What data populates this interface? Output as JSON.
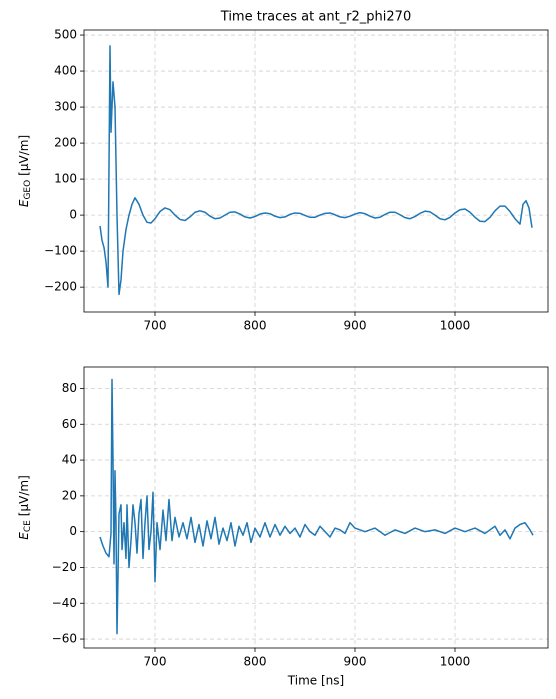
{
  "chart_data": [
    {
      "type": "line",
      "title": "Time traces at ant_r2_phi270",
      "ylabel": {
        "symbol": "E",
        "subscript": "GEO",
        "unit": "[μV/m]"
      },
      "xlim": [
        629,
        1093
      ],
      "ylim": [
        -269,
        514
      ],
      "xticks": [
        700,
        800,
        900,
        1000
      ],
      "yticks": [
        {
          "value": -200,
          "label": "−200"
        },
        {
          "value": -100,
          "label": "−100"
        },
        0,
        100,
        200,
        300,
        400,
        500
      ],
      "grid": true,
      "series": [
        {
          "name": "E_GEO",
          "color": "#1f77b4",
          "x": [
            645,
            647,
            649,
            651,
            653,
            655,
            656,
            658,
            660,
            662,
            664,
            666,
            668,
            671,
            674,
            677,
            680,
            684,
            688,
            692,
            696,
            700,
            705,
            710,
            715,
            720,
            725,
            730,
            735,
            740,
            745,
            750,
            755,
            760,
            765,
            770,
            775,
            780,
            785,
            790,
            795,
            800,
            805,
            810,
            815,
            820,
            825,
            830,
            835,
            840,
            845,
            850,
            855,
            860,
            865,
            870,
            875,
            880,
            885,
            890,
            895,
            900,
            905,
            910,
            915,
            920,
            925,
            930,
            935,
            940,
            945,
            950,
            955,
            960,
            965,
            970,
            975,
            980,
            985,
            990,
            995,
            1000,
            1005,
            1010,
            1015,
            1020,
            1025,
            1030,
            1035,
            1040,
            1045,
            1050,
            1055,
            1060,
            1065,
            1068,
            1071,
            1074,
            1077
          ],
          "values": [
            -30,
            -70,
            -90,
            -130,
            -200,
            470,
            230,
            370,
            300,
            0,
            -220,
            -180,
            -100,
            -40,
            0,
            30,
            48,
            30,
            0,
            -20,
            -22,
            -10,
            10,
            20,
            15,
            0,
            -12,
            -15,
            -5,
            8,
            12,
            8,
            -3,
            -10,
            -8,
            0,
            8,
            9,
            3,
            -5,
            -8,
            -4,
            3,
            6,
            4,
            -3,
            -7,
            -5,
            2,
            6,
            5,
            -1,
            -6,
            -6,
            0,
            5,
            6,
            1,
            -5,
            -7,
            -3,
            3,
            7,
            4,
            -3,
            -8,
            -6,
            2,
            8,
            8,
            1,
            -7,
            -10,
            -4,
            5,
            11,
            9,
            0,
            -10,
            -13,
            -6,
            6,
            15,
            17,
            8,
            -6,
            -17,
            -18,
            -6,
            12,
            25,
            25,
            10,
            -10,
            -25,
            30,
            40,
            20,
            -35
          ]
        }
      ]
    },
    {
      "type": "line",
      "xlabel": "Time [ns]",
      "ylabel": {
        "symbol": "E",
        "subscript": "CE",
        "unit": "[μV/m]"
      },
      "xlim": [
        629,
        1093
      ],
      "ylim": [
        -65,
        92
      ],
      "xticks": [
        700,
        800,
        900,
        1000
      ],
      "yticks": [
        {
          "value": -60,
          "label": "−60"
        },
        {
          "value": -40,
          "label": "−40"
        },
        {
          "value": -20,
          "label": "−20"
        },
        0,
        20,
        40,
        60,
        80
      ],
      "grid": true,
      "series": [
        {
          "name": "E_CE",
          "color": "#1f77b4",
          "x": [
            645,
            648,
            651,
            654,
            656,
            657,
            658,
            659,
            660,
            661,
            662,
            663,
            664,
            666,
            667,
            669,
            671,
            672,
            674,
            676,
            678,
            680,
            682,
            684,
            686,
            688,
            690,
            692,
            694,
            696,
            698,
            700,
            702,
            705,
            708,
            711,
            714,
            717,
            720,
            724,
            728,
            732,
            736,
            740,
            744,
            748,
            752,
            756,
            760,
            764,
            768,
            772,
            776,
            780,
            784,
            788,
            792,
            796,
            800,
            805,
            810,
            815,
            820,
            825,
            830,
            835,
            840,
            845,
            850,
            855,
            860,
            865,
            870,
            875,
            880,
            885,
            890,
            895,
            900,
            910,
            920,
            930,
            940,
            950,
            960,
            970,
            980,
            990,
            1000,
            1010,
            1020,
            1030,
            1040,
            1045,
            1050,
            1055,
            1060,
            1065,
            1070,
            1075,
            1078
          ],
          "values": [
            -3,
            -8,
            -12,
            -14,
            -1,
            85,
            40,
            -18,
            34,
            5,
            -57,
            -25,
            10,
            15,
            -10,
            5,
            -15,
            15,
            -20,
            -5,
            15,
            5,
            -12,
            10,
            18,
            -15,
            5,
            20,
            -10,
            0,
            22,
            -28,
            5,
            -10,
            12,
            -5,
            18,
            -5,
            8,
            -3,
            5,
            -4,
            8,
            -6,
            4,
            -8,
            6,
            -4,
            8,
            -7,
            2,
            -5,
            5,
            -8,
            3,
            -2,
            5,
            -6,
            2,
            -3,
            5,
            -3,
            4,
            -2,
            3,
            -1,
            2,
            -3,
            4,
            0,
            -2,
            3,
            0,
            -3,
            2,
            1,
            -1,
            5,
            2,
            0,
            2,
            -2,
            1,
            -1,
            2,
            0,
            1,
            -1,
            2,
            0,
            2,
            -1,
            3,
            -2,
            1,
            -4,
            2,
            4,
            5,
            1,
            -2
          ]
        }
      ]
    }
  ]
}
